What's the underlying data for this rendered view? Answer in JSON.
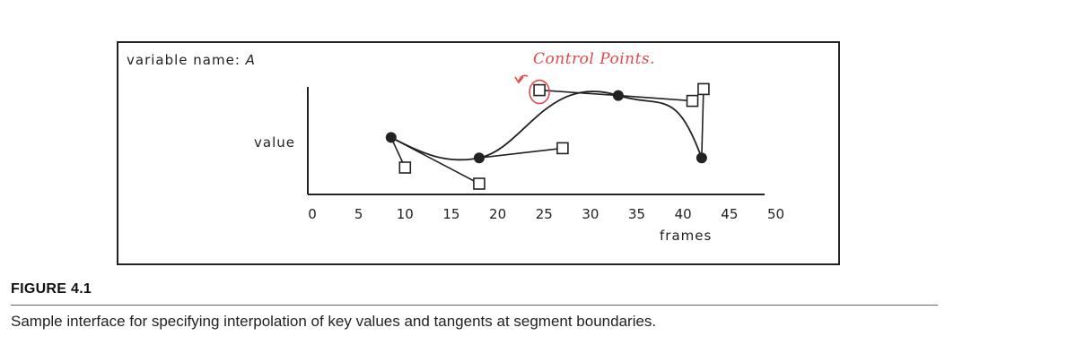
{
  "figure": {
    "panel": {
      "variable_label": "variable name:",
      "variable_value": "A",
      "y_axis_label": "value",
      "x_axis_label": "frames",
      "annotation": "Control Points."
    },
    "label": "FIGURE 4.1",
    "caption": "Sample interface for specifying interpolation of key values and tangents at segment boundaries."
  },
  "chart_data": {
    "type": "line",
    "xlabel": "frames",
    "ylabel": "value",
    "x_ticks": [
      "0",
      "5",
      "10",
      "15",
      "20",
      "25",
      "30",
      "35",
      "40",
      "45",
      "50"
    ],
    "xlim": [
      0,
      50
    ],
    "grid": false,
    "key_points": [
      {
        "x": 8.5,
        "y": 0.53
      },
      {
        "x": 18.0,
        "y": 0.34
      },
      {
        "x": 33.0,
        "y": 0.92
      },
      {
        "x": 42.0,
        "y": 0.34
      }
    ],
    "control_points": [
      {
        "x": 10.0,
        "y": 0.25,
        "key": 0
      },
      {
        "x": 18.0,
        "y": 0.1,
        "key": 0
      },
      {
        "x": 27.0,
        "y": 0.43,
        "key": 1
      },
      {
        "x": 24.5,
        "y": 0.97,
        "key": 2
      },
      {
        "x": 41.0,
        "y": 0.87,
        "key": 2
      },
      {
        "x": 42.2,
        "y": 0.98,
        "key": 3
      }
    ],
    "highlighted_control_point": 3,
    "colors": {
      "ink": "#222222",
      "annotation": "#e34848"
    }
  }
}
